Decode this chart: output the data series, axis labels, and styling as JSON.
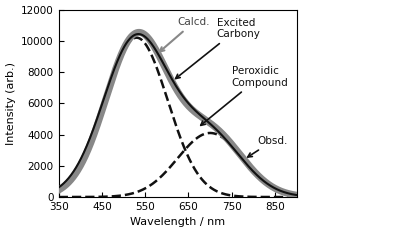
{
  "xlim": [
    350,
    900
  ],
  "ylim": [
    0,
    12000
  ],
  "xlabel": "Wavelength / nm",
  "ylabel": "Intensity (arb.)",
  "xticks": [
    350,
    450,
    550,
    650,
    750,
    850
  ],
  "yticks": [
    0,
    2000,
    4000,
    6000,
    8000,
    10000,
    12000
  ],
  "background_color": "#ffffff",
  "calcd_color": "#888888",
  "obsd_color": "#111111",
  "dashed_color": "#111111",
  "calcd_lw": 5.0,
  "obsd_lw": 1.5,
  "dashed_lw": 1.8,
  "exc_carbonyl": {
    "mu": 530,
    "sigma": 72,
    "amplitude": 10200
  },
  "peroxidic": {
    "mu": 700,
    "sigma": 75,
    "amplitude": 4100
  },
  "obsd_peak1": {
    "mu": 527,
    "sigma": 75,
    "amplitude": 10000
  },
  "obsd_peak2": {
    "mu": 695,
    "sigma": 78,
    "amplitude": 4000
  }
}
